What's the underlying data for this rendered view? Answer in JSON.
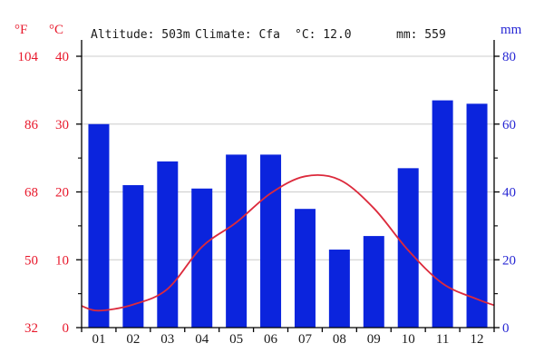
{
  "header": {
    "fahrenheit_unit": "°F",
    "celsius_unit": "°C",
    "mm_unit": "mm",
    "altitude": "Altitude: 503m",
    "climate": "Climate: Cfa",
    "mean_temp": "°C: 12.0",
    "annual_precip": "mm: 559"
  },
  "chart_data": {
    "type": "climograph-bar-line",
    "title": "Climate chart: Altitude 503m, Climate Cfa, mean temp 12.0 °C, annual precipitation 559 mm",
    "categories": [
      "01",
      "02",
      "03",
      "04",
      "05",
      "06",
      "07",
      "08",
      "09",
      "10",
      "11",
      "12"
    ],
    "series": [
      {
        "name": "precipitation_mm",
        "type": "bar",
        "color": "#0b24dd",
        "values": [
          60,
          42,
          49,
          41,
          51,
          51,
          35,
          23,
          27,
          47,
          67,
          66
        ]
      },
      {
        "name": "temperature_c",
        "type": "line",
        "color": "#dc2a3c",
        "values": [
          2.5,
          3.4,
          5.7,
          11.9,
          15.5,
          19.8,
          22.3,
          21.8,
          17.6,
          11.4,
          6.5,
          4.2
        ],
        "edge_start": 3.2,
        "edge_end": 3.3
      }
    ],
    "axes": {
      "left_fahrenheit": {
        "unit": "°F",
        "ticks": [
          32,
          50,
          68,
          86,
          104
        ],
        "color": "#e8192c"
      },
      "left_celsius": {
        "unit": "°C",
        "ticks": [
          0,
          10,
          20,
          30,
          40
        ],
        "range": [
          0,
          40
        ],
        "minor_step": 5,
        "color": "#e8192c"
      },
      "right_mm": {
        "unit": "mm",
        "ticks": [
          0,
          20,
          40,
          60,
          80
        ],
        "range": [
          0,
          80
        ],
        "minor_step": 10,
        "color": "#2727d4"
      },
      "x_months": {
        "color": "#1a1a1a"
      }
    },
    "grid": {
      "show": true,
      "color": "#cccccc"
    },
    "legend_position": "none",
    "axis_color": "#000000"
  }
}
